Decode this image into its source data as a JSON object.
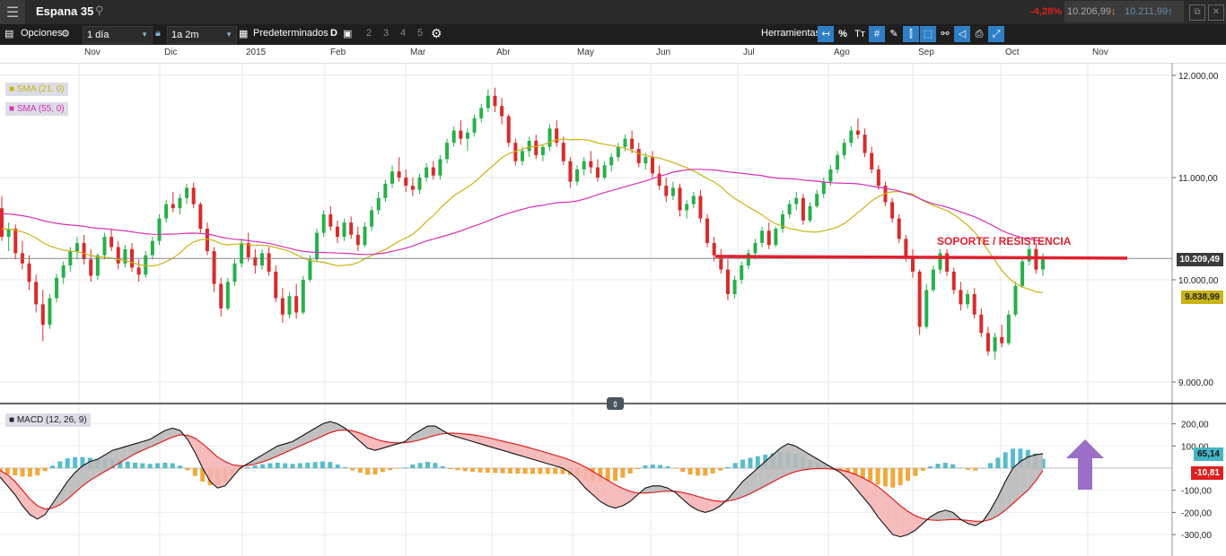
{
  "app": {
    "instrument": "Espana 35",
    "change": "-4,28%",
    "bid": "10.206,99",
    "ask": "10.211,99"
  },
  "toolbar": {
    "options_label": "Opciones",
    "interval": "1 día",
    "range": "1a 2m",
    "presets_label": "Predeterminados",
    "layout_nums": [
      "2",
      "3",
      "4",
      "5"
    ],
    "tools_label": "Herramientas",
    "percent_label": "%",
    "text_tool_label": "Tт"
  },
  "months": [
    "Nov",
    "Dic",
    "2015",
    "Feb",
    "Mar",
    "Abr",
    "May",
    "Jun",
    "Jul",
    "Ago",
    "Sep",
    "Oct",
    "Nov"
  ],
  "indicators": {
    "sma21": "SMA (21, 0)",
    "sma55": "SMA (55, 0)",
    "macd": "MACD (12, 26, 9)"
  },
  "annotation": "SOPORTE / RESISTENCIA",
  "price_axis": [
    "12.000,00",
    "11.000,00",
    "10.000,00",
    "9.000,00"
  ],
  "macd_axis": [
    "200,00",
    "100,00",
    "-100,00",
    "-200,00",
    "-300,00"
  ],
  "last_price": "10.209,49",
  "sma_value": "9.838,99",
  "macd_value": "65,14",
  "signal_value": "-10,81",
  "colors": {
    "up": "#27b04a",
    "down": "#d92b2b",
    "sma21": "#c9b413",
    "sma55": "#d62fb5",
    "support_line": "#e0202e",
    "hist_pos": "#45b5c6",
    "hist_neg": "#f0a023",
    "arrow": "#9b6ec7"
  },
  "chart_data": {
    "type": "candlestick",
    "ylim": [
      8750,
      12200
    ],
    "support_level": 10220,
    "ohlc_daily": [
      [
        10700,
        10820,
        10380,
        10420
      ],
      [
        10420,
        10560,
        10280,
        10500
      ],
      [
        10500,
        10540,
        10200,
        10260
      ],
      [
        10260,
        10380,
        10100,
        10160
      ],
      [
        10160,
        10240,
        9900,
        9980
      ],
      [
        9980,
        10050,
        9680,
        9760
      ],
      [
        9760,
        9900,
        9400,
        9560
      ],
      [
        9560,
        9860,
        9520,
        9820
      ],
      [
        9820,
        10060,
        9780,
        10020
      ],
      [
        10020,
        10180,
        9960,
        10140
      ],
      [
        10140,
        10320,
        10080,
        10280
      ],
      [
        10280,
        10420,
        10200,
        10360
      ],
      [
        10360,
        10440,
        10150,
        10200
      ],
      [
        10200,
        10300,
        9980,
        10040
      ],
      [
        10040,
        10260,
        10000,
        10240
      ],
      [
        10240,
        10460,
        10200,
        10420
      ],
      [
        10420,
        10500,
        10280,
        10320
      ],
      [
        10320,
        10380,
        10100,
        10160
      ],
      [
        10160,
        10340,
        10120,
        10300
      ],
      [
        10300,
        10360,
        10080,
        10120
      ],
      [
        10120,
        10200,
        9980,
        10050
      ],
      [
        10050,
        10280,
        10020,
        10240
      ],
      [
        10240,
        10420,
        10200,
        10380
      ],
      [
        10380,
        10640,
        10340,
        10600
      ],
      [
        10600,
        10780,
        10560,
        10740
      ],
      [
        10740,
        10860,
        10660,
        10700
      ],
      [
        10700,
        10840,
        10640,
        10800
      ],
      [
        10800,
        10940,
        10740,
        10900
      ],
      [
        10900,
        10950,
        10700,
        10740
      ],
      [
        10740,
        10760,
        10460,
        10500
      ],
      [
        10500,
        10560,
        10240,
        10280
      ],
      [
        10280,
        10320,
        9880,
        9960
      ],
      [
        9960,
        10020,
        9640,
        9720
      ],
      [
        9720,
        10020,
        9700,
        9980
      ],
      [
        9980,
        10200,
        9940,
        10160
      ],
      [
        10160,
        10400,
        10120,
        10360
      ],
      [
        10360,
        10460,
        10180,
        10220
      ],
      [
        10220,
        10300,
        10060,
        10140
      ],
      [
        10140,
        10300,
        10100,
        10260
      ],
      [
        10260,
        10320,
        10040,
        10080
      ],
      [
        10080,
        10140,
        9780,
        9820
      ],
      [
        9820,
        9920,
        9580,
        9660
      ],
      [
        9660,
        9880,
        9620,
        9840
      ],
      [
        9840,
        9960,
        9620,
        9680
      ],
      [
        9680,
        10040,
        9660,
        10000
      ],
      [
        10000,
        10240,
        9980,
        10200
      ],
      [
        10200,
        10500,
        10180,
        10460
      ],
      [
        10460,
        10680,
        10420,
        10640
      ],
      [
        10640,
        10720,
        10480,
        10520
      ],
      [
        10520,
        10580,
        10360,
        10420
      ],
      [
        10420,
        10600,
        10380,
        10560
      ],
      [
        10560,
        10620,
        10400,
        10440
      ],
      [
        10440,
        10520,
        10280,
        10340
      ],
      [
        10340,
        10560,
        10320,
        10520
      ],
      [
        10520,
        10720,
        10480,
        10680
      ],
      [
        10680,
        10860,
        10640,
        10800
      ],
      [
        10800,
        10980,
        10760,
        10940
      ],
      [
        10940,
        11120,
        10900,
        11060
      ],
      [
        11060,
        11200,
        10960,
        11000
      ],
      [
        11000,
        11080,
        10860,
        10920
      ],
      [
        10920,
        11000,
        10820,
        10880
      ],
      [
        10880,
        11040,
        10840,
        11000
      ],
      [
        11000,
        11140,
        10960,
        11100
      ],
      [
        11100,
        11160,
        10980,
        11020
      ],
      [
        11020,
        11220,
        10980,
        11180
      ],
      [
        11180,
        11380,
        11140,
        11340
      ],
      [
        11340,
        11500,
        11300,
        11460
      ],
      [
        11460,
        11560,
        11320,
        11380
      ],
      [
        11380,
        11480,
        11260,
        11440
      ],
      [
        11440,
        11620,
        11400,
        11580
      ],
      [
        11580,
        11720,
        11540,
        11680
      ],
      [
        11680,
        11860,
        11640,
        11800
      ],
      [
        11800,
        11880,
        11640,
        11700
      ],
      [
        11700,
        11780,
        11520,
        11600
      ],
      [
        11600,
        11620,
        11300,
        11340
      ],
      [
        11340,
        11380,
        11120,
        11160
      ],
      [
        11160,
        11300,
        11120,
        11260
      ],
      [
        11260,
        11400,
        11200,
        11360
      ],
      [
        11360,
        11420,
        11180,
        11220
      ],
      [
        11220,
        11320,
        11160,
        11300
      ],
      [
        11300,
        11520,
        11260,
        11480
      ],
      [
        11480,
        11560,
        11300,
        11340
      ],
      [
        11340,
        11400,
        11120,
        11160
      ],
      [
        11160,
        11200,
        10900,
        10960
      ],
      [
        10960,
        11120,
        10920,
        11080
      ],
      [
        11080,
        11200,
        11020,
        11160
      ],
      [
        11160,
        11260,
        11040,
        11100
      ],
      [
        11100,
        11180,
        10960,
        11000
      ],
      [
        11000,
        11160,
        10980,
        11120
      ],
      [
        11120,
        11240,
        11060,
        11200
      ],
      [
        11200,
        11340,
        11160,
        11300
      ],
      [
        11300,
        11420,
        11260,
        11380
      ],
      [
        11380,
        11460,
        11240,
        11280
      ],
      [
        11280,
        11340,
        11100,
        11140
      ],
      [
        11140,
        11240,
        11080,
        11200
      ],
      [
        11200,
        11260,
        11000,
        11040
      ],
      [
        11040,
        11120,
        10880,
        10920
      ],
      [
        10920,
        11000,
        10760,
        10820
      ],
      [
        10820,
        10960,
        10780,
        10900
      ],
      [
        10900,
        10940,
        10620,
        10680
      ],
      [
        10680,
        10780,
        10600,
        10740
      ],
      [
        10740,
        10860,
        10700,
        10820
      ],
      [
        10820,
        10880,
        10560,
        10600
      ],
      [
        10600,
        10640,
        10320,
        10360
      ],
      [
        10360,
        10420,
        10180,
        10240
      ],
      [
        10240,
        10300,
        10060,
        10100
      ],
      [
        10100,
        10200,
        9800,
        9860
      ],
      [
        9860,
        10040,
        9820,
        10000
      ],
      [
        10000,
        10180,
        9960,
        10140
      ],
      [
        10140,
        10300,
        10100,
        10260
      ],
      [
        10260,
        10400,
        10200,
        10360
      ],
      [
        10360,
        10520,
        10320,
        10480
      ],
      [
        10480,
        10560,
        10300,
        10340
      ],
      [
        10340,
        10520,
        10320,
        10500
      ],
      [
        10500,
        10680,
        10460,
        10640
      ],
      [
        10640,
        10780,
        10600,
        10740
      ],
      [
        10740,
        10860,
        10680,
        10800
      ],
      [
        10800,
        10840,
        10540,
        10580
      ],
      [
        10580,
        10760,
        10560,
        10720
      ],
      [
        10720,
        10880,
        10700,
        10840
      ],
      [
        10840,
        11000,
        10800,
        10960
      ],
      [
        10960,
        11120,
        10920,
        11080
      ],
      [
        11080,
        11260,
        11040,
        11220
      ],
      [
        11220,
        11380,
        11180,
        11340
      ],
      [
        11340,
        11500,
        11300,
        11460
      ],
      [
        11460,
        11580,
        11380,
        11420
      ],
      [
        11420,
        11480,
        11200,
        11240
      ],
      [
        11240,
        11300,
        11040,
        11080
      ],
      [
        11080,
        11120,
        10880,
        10920
      ],
      [
        10920,
        10960,
        10720,
        10760
      ],
      [
        10760,
        10800,
        10560,
        10600
      ],
      [
        10600,
        10640,
        10360,
        10400
      ],
      [
        10400,
        10440,
        10180,
        10220
      ],
      [
        10220,
        10300,
        10020,
        10080
      ],
      [
        10080,
        10100,
        9460,
        9540
      ],
      [
        9540,
        9960,
        9520,
        9900
      ],
      [
        9900,
        10140,
        9880,
        10100
      ],
      [
        10100,
        10300,
        10060,
        10260
      ],
      [
        10260,
        10300,
        10040,
        10080
      ],
      [
        10080,
        10120,
        9860,
        9900
      ],
      [
        9900,
        9980,
        9700,
        9760
      ],
      [
        9760,
        9900,
        9720,
        9860
      ],
      [
        9860,
        9920,
        9620,
        9660
      ],
      [
        9660,
        9720,
        9440,
        9480
      ],
      [
        9480,
        9540,
        9260,
        9300
      ],
      [
        9300,
        9480,
        9220,
        9440
      ],
      [
        9440,
        9560,
        9340,
        9380
      ],
      [
        9380,
        9700,
        9360,
        9660
      ],
      [
        9660,
        9980,
        9640,
        9940
      ],
      [
        9940,
        10220,
        9920,
        10180
      ],
      [
        10180,
        10360,
        10140,
        10300
      ],
      [
        10300,
        10360,
        10060,
        10100
      ],
      [
        10100,
        10260,
        10040,
        10209
      ]
    ],
    "macd": [
      -40,
      -80,
      -120,
      -170,
      -210,
      -230,
      -210,
      -160,
      -110,
      -60,
      -20,
      10,
      30,
      40,
      60,
      80,
      90,
      100,
      110,
      120,
      130,
      150,
      170,
      180,
      170,
      130,
      70,
      0,
      -60,
      -90,
      -80,
      -40,
      0,
      20,
      40,
      60,
      80,
      100,
      110,
      120,
      140,
      160,
      180,
      200,
      210,
      200,
      180,
      150,
      120,
      90,
      80,
      90,
      100,
      110,
      120,
      150,
      170,
      190,
      190,
      170,
      150,
      140,
      130,
      120,
      110,
      100,
      90,
      80,
      70,
      60,
      50,
      40,
      30,
      20,
      10,
      0,
      -20,
      -50,
      -90,
      -120,
      -150,
      -170,
      -180,
      -170,
      -150,
      -120,
      -90,
      -80,
      -80,
      -90,
      -110,
      -140,
      -170,
      -190,
      -200,
      -190,
      -170,
      -140,
      -100,
      -60,
      -30,
      0,
      30,
      60,
      90,
      110,
      100,
      80,
      60,
      40,
      20,
      0,
      -20,
      -50,
      -90,
      -130,
      -170,
      -220,
      -260,
      -300,
      -310,
      -300,
      -280,
      -250,
      -220,
      -200,
      -190,
      -200,
      -230,
      -250,
      -260,
      -240,
      -190,
      -130,
      -60,
      0,
      30,
      50,
      60,
      65
    ],
    "signal": [
      -10,
      -30,
      -60,
      -100,
      -140,
      -170,
      -185,
      -180,
      -165,
      -140,
      -110,
      -80,
      -55,
      -35,
      -15,
      5,
      25,
      45,
      65,
      80,
      95,
      110,
      125,
      140,
      150,
      148,
      135,
      110,
      80,
      50,
      30,
      15,
      10,
      12,
      18,
      28,
      40,
      55,
      70,
      85,
      100,
      115,
      130,
      145,
      160,
      170,
      172,
      168,
      158,
      145,
      132,
      122,
      116,
      114,
      115,
      120,
      128,
      138,
      148,
      155,
      158,
      157,
      154,
      150,
      145,
      138,
      130,
      122,
      114,
      106,
      97,
      88,
      78,
      68,
      58,
      48,
      36,
      22,
      5,
      -15,
      -35,
      -55,
      -75,
      -92,
      -105,
      -112,
      -113,
      -110,
      -106,
      -104,
      -105,
      -110,
      -118,
      -128,
      -138,
      -146,
      -150,
      -149,
      -142,
      -130,
      -115,
      -98,
      -80,
      -62,
      -44,
      -28,
      -16,
      -8,
      -4,
      -2,
      -2,
      -4,
      -8,
      -16,
      -28,
      -44,
      -62,
      -84,
      -110,
      -140,
      -170,
      -195,
      -215,
      -228,
      -234,
      -236,
      -234,
      -232,
      -233,
      -236,
      -240,
      -240,
      -232,
      -215,
      -190,
      -160,
      -130,
      -100,
      -60,
      -11
    ]
  }
}
